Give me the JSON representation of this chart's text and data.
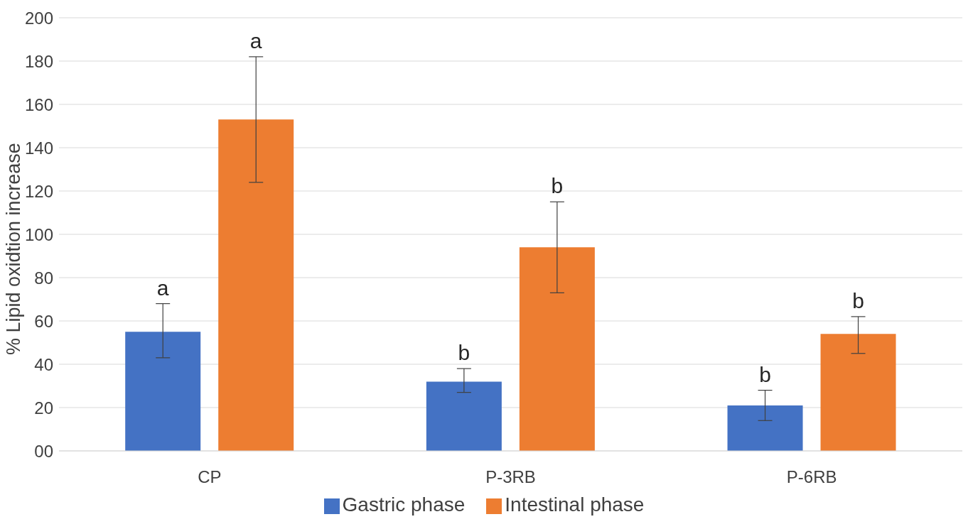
{
  "chart_data": {
    "type": "bar",
    "ylabel": "% Lipid oxidtion increase",
    "categories": [
      "CP",
      "P-3RB",
      "P-6RB"
    ],
    "series": [
      {
        "name": "Gastric phase",
        "color": "#4472c4",
        "values": [
          55,
          32,
          21
        ],
        "errors": [
          [
            43,
            68
          ],
          [
            27,
            38
          ],
          [
            14,
            28
          ]
        ],
        "value_labels": [
          "a",
          "b",
          "b"
        ]
      },
      {
        "name": "Intestinal phase",
        "color": "#ed7d31",
        "values": [
          153,
          94,
          54
        ],
        "errors": [
          [
            124,
            182
          ],
          [
            73,
            115
          ],
          [
            45,
            62
          ]
        ],
        "value_labels": [
          "a",
          "b",
          "b"
        ]
      }
    ],
    "ylim": [
      0,
      200
    ],
    "yticks": [
      {
        "value": 0,
        "label": "00"
      },
      20,
      40,
      60,
      80,
      100,
      120,
      140,
      160,
      180,
      200
    ],
    "grid": "y",
    "legend": "bottom"
  }
}
